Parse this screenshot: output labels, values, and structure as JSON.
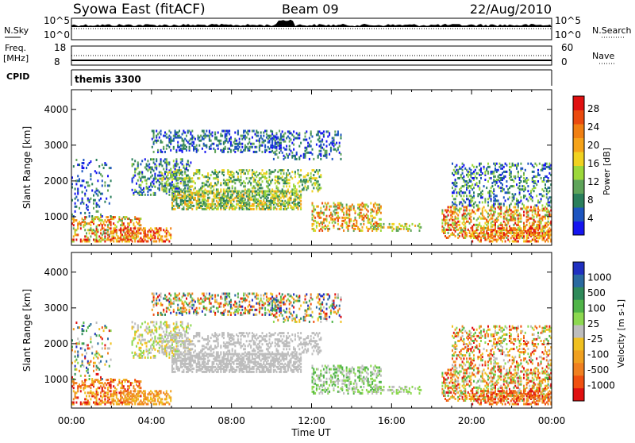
{
  "header": {
    "station": "Syowa East (fitACF)",
    "beam": "Beam 09",
    "date": "22/Aug/2010"
  },
  "noise_panel": {
    "left_label": "N.Sky",
    "left_ticks": [
      "10^5",
      "10^0"
    ],
    "right_ticks": [
      "10^5",
      "10^0"
    ],
    "right_label": "N.Search"
  },
  "freq_panel": {
    "left_label_1": "Freq.",
    "left_label_2": "[MHz]",
    "left_ticks": [
      "18",
      "8"
    ],
    "right_ticks": [
      "60",
      "0"
    ],
    "right_label": "Nave"
  },
  "cpid": {
    "label": "CPID",
    "value": "themis 3300"
  },
  "chart_data": [
    {
      "type": "heatmap",
      "name": "power",
      "ylabel": "Slant Range [km]",
      "yticks": [
        "1000",
        "2000",
        "3000",
        "4000"
      ],
      "yticks_values": [
        1000,
        2000,
        3000,
        4000
      ],
      "ylim": [
        200,
        4550
      ],
      "xlim": [
        0,
        24
      ],
      "colorbar": {
        "label": "Power [dB]",
        "tick_labels": [
          "4",
          "8",
          "12",
          "16",
          "20",
          "24",
          "28"
        ],
        "colors": [
          "#1515f0",
          "#1d55c0",
          "#2a7f5c",
          "#5fa45a",
          "#9cd83a",
          "#f0d220",
          "#f5a31a",
          "#f07f12",
          "#ea4a0e",
          "#e01010"
        ]
      }
    },
    {
      "type": "heatmap",
      "name": "velocity",
      "ylabel": "Slant Range [km]",
      "yticks": [
        "1000",
        "2000",
        "3000",
        "4000"
      ],
      "yticks_values": [
        1000,
        2000,
        3000,
        4000
      ],
      "ylim": [
        200,
        4550
      ],
      "xlim": [
        0,
        24
      ],
      "colorbar": {
        "label": "Velocity [m s-1]",
        "tick_labels": [
          "1000",
          "500",
          "100",
          "25",
          "-25",
          "-100",
          "-500",
          "-1000"
        ],
        "colors": [
          "#2030c0",
          "#2a6aa0",
          "#2f8a5a",
          "#50b448",
          "#8cd850",
          "#bdbdbd",
          "#f0c020",
          "#f0a020",
          "#f08020",
          "#f05010",
          "#e01010"
        ]
      }
    }
  ],
  "xaxis": {
    "ticks": [
      "00:00",
      "04:00",
      "08:00",
      "12:00",
      "16:00",
      "20:00",
      "00:00"
    ],
    "label": "Time UT"
  }
}
